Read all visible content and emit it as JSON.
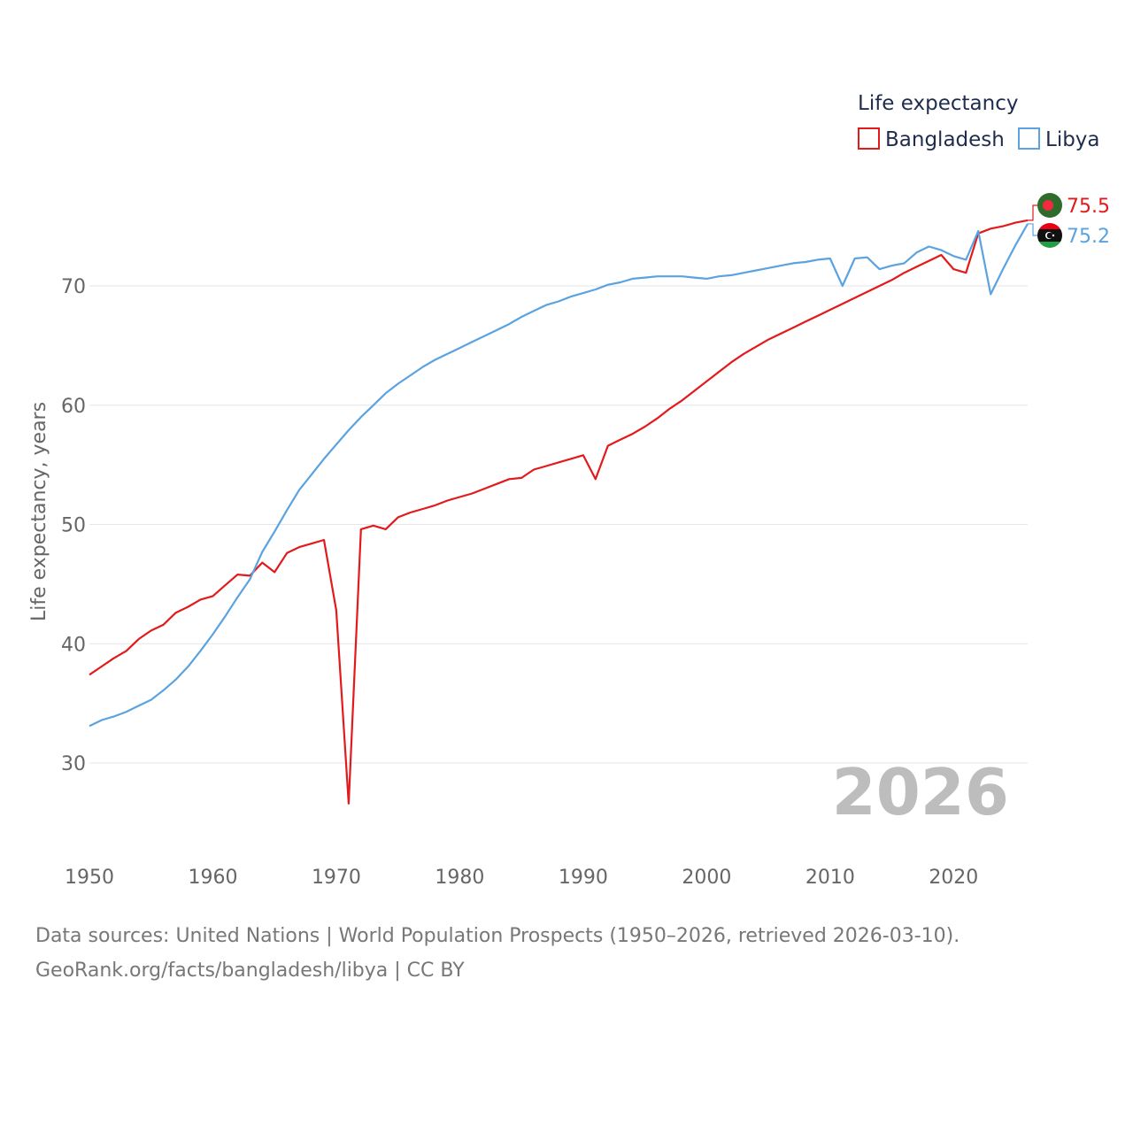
{
  "chart_data": {
    "type": "line",
    "ylabel": "Life expectancy, years",
    "xlim": [
      1950,
      2026
    ],
    "ylim": [
      23.5,
      77
    ],
    "yticks": [
      30,
      40,
      50,
      60,
      70
    ],
    "xticks": [
      1950,
      1960,
      1970,
      1980,
      1990,
      2000,
      2010,
      2020
    ],
    "legend_title": "Life expectancy",
    "legend_position": "top-right",
    "watermark_year": "2026",
    "x": [
      1950,
      1951,
      1952,
      1953,
      1954,
      1955,
      1956,
      1957,
      1958,
      1959,
      1960,
      1961,
      1962,
      1963,
      1964,
      1965,
      1966,
      1967,
      1968,
      1969,
      1970,
      1971,
      1972,
      1973,
      1974,
      1975,
      1976,
      1977,
      1978,
      1979,
      1980,
      1981,
      1982,
      1983,
      1984,
      1985,
      1986,
      1987,
      1988,
      1989,
      1990,
      1991,
      1992,
      1993,
      1994,
      1995,
      1996,
      1997,
      1998,
      1999,
      2000,
      2001,
      2002,
      2003,
      2004,
      2005,
      2006,
      2007,
      2008,
      2009,
      2010,
      2011,
      2012,
      2013,
      2014,
      2015,
      2016,
      2017,
      2018,
      2019,
      2020,
      2021,
      2022,
      2023,
      2024,
      2025,
      2026
    ],
    "series": [
      {
        "name": "Bangladesh",
        "color": "#e31a1c",
        "end_label": "75.5",
        "flag": "bangladesh-flag-icon",
        "values": [
          37.4,
          38.1,
          38.8,
          39.4,
          40.4,
          41.1,
          41.6,
          42.6,
          43.1,
          43.7,
          44.0,
          44.9,
          45.8,
          45.7,
          46.8,
          46.0,
          47.6,
          48.1,
          48.4,
          48.7,
          42.8,
          26.6,
          49.6,
          49.9,
          49.6,
          50.6,
          51.0,
          51.3,
          51.6,
          52.0,
          52.3,
          52.6,
          53.0,
          53.4,
          53.8,
          53.9,
          54.6,
          54.9,
          55.2,
          55.5,
          55.8,
          53.8,
          56.6,
          57.1,
          57.6,
          58.2,
          58.9,
          59.7,
          60.4,
          61.2,
          62.0,
          62.8,
          63.6,
          64.3,
          64.9,
          65.5,
          66.0,
          66.5,
          67.0,
          67.5,
          68.0,
          68.5,
          69.0,
          69.5,
          70.0,
          70.5,
          71.1,
          71.6,
          72.1,
          72.6,
          71.4,
          71.1,
          74.4,
          74.8,
          75.0,
          75.3,
          75.5
        ]
      },
      {
        "name": "Libya",
        "color": "#5ba3e0",
        "end_label": "75.2",
        "flag": "libya-flag-icon",
        "values": [
          33.1,
          33.6,
          33.9,
          34.3,
          34.8,
          35.3,
          36.1,
          37.0,
          38.1,
          39.4,
          40.8,
          42.3,
          43.9,
          45.4,
          47.7,
          49.4,
          51.2,
          52.9,
          54.2,
          55.5,
          56.7,
          57.9,
          59.0,
          60.0,
          61.0,
          61.8,
          62.5,
          63.2,
          63.8,
          64.3,
          64.8,
          65.3,
          65.8,
          66.3,
          66.8,
          67.4,
          67.9,
          68.4,
          68.7,
          69.1,
          69.4,
          69.7,
          70.1,
          70.3,
          70.6,
          70.7,
          70.8,
          70.8,
          70.8,
          70.7,
          70.6,
          70.8,
          70.9,
          71.1,
          71.3,
          71.5,
          71.7,
          71.9,
          72.0,
          72.2,
          72.3,
          70.0,
          72.3,
          72.4,
          71.4,
          71.7,
          71.9,
          72.8,
          73.3,
          73.0,
          72.5,
          72.2,
          74.6,
          69.3,
          71.4,
          73.4,
          75.2
        ]
      }
    ]
  },
  "footer": {
    "line1": "Data sources: United Nations | World Population Prospects (1950–2026, retrieved 2026-03-10).",
    "line2": "GeoRank.org/facts/bangladesh/libya | CC BY"
  }
}
